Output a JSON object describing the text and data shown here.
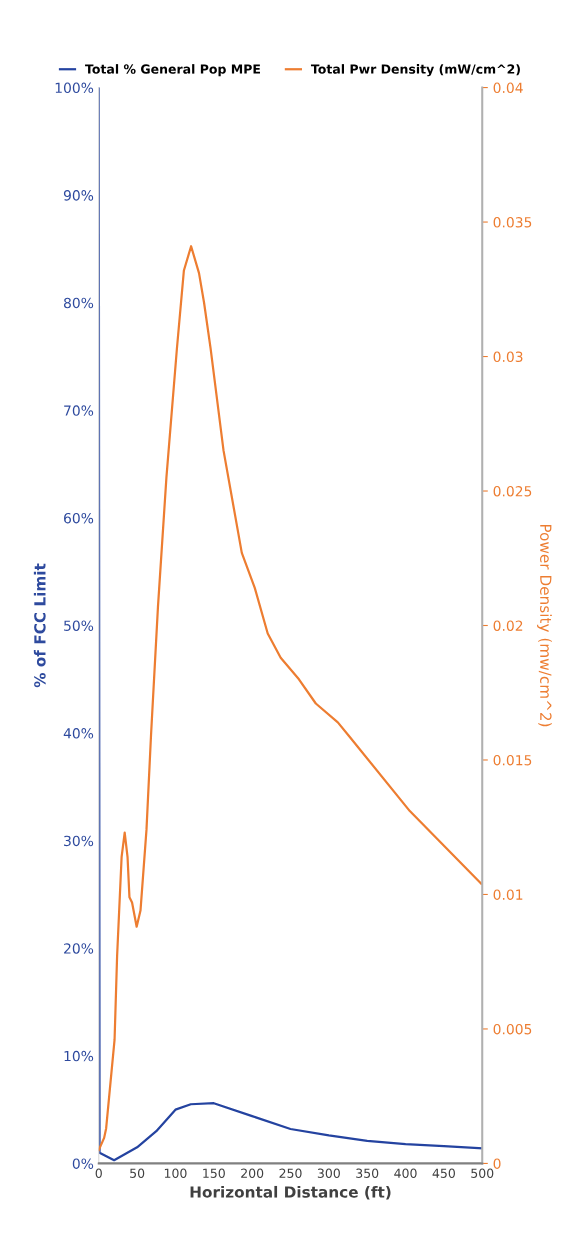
{
  "chart_data": {
    "type": "line",
    "xlabel": "Horizontal Distance (ft)",
    "ylabel": "% of FCC Limit",
    "y2label": "Power Density (mw/cm^2)",
    "xlim": [
      0,
      500
    ],
    "xticks": [
      0,
      50,
      100,
      150,
      200,
      250,
      300,
      350,
      400,
      450,
      500
    ],
    "ylim": [
      0,
      100
    ],
    "yticks": [
      {
        "value": 0,
        "label": "0%"
      },
      {
        "value": 10,
        "label": "10%"
      },
      {
        "value": 20,
        "label": "20%"
      },
      {
        "value": 30,
        "label": "30%"
      },
      {
        "value": 40,
        "label": "40%"
      },
      {
        "value": 50,
        "label": "50%"
      },
      {
        "value": 60,
        "label": "60%"
      },
      {
        "value": 70,
        "label": "70%"
      },
      {
        "value": 80,
        "label": "80%"
      },
      {
        "value": 90,
        "label": "90%"
      },
      {
        "value": 100,
        "label": "100%"
      }
    ],
    "y2lim": [
      0,
      0.04
    ],
    "y2ticks": [
      0,
      0.005,
      0.01,
      0.015,
      0.02,
      0.025,
      0.03,
      0.035,
      0.04
    ],
    "legend": "top",
    "grid": false,
    "marker": "none",
    "line_style": "solid",
    "series": [
      {
        "name": "Total % General Pop MPE",
        "color": "#2443a0",
        "axis": "y",
        "x": [
          0,
          1,
          20,
          50,
          75,
          100,
          120,
          150,
          200,
          250,
          300,
          350,
          400,
          450,
          500
        ],
        "values": [
          100,
          1,
          0.3,
          1.5,
          3,
          5,
          5.5,
          5.6,
          4.4,
          3.2,
          2.6,
          2.1,
          1.8,
          1.6,
          1.4
        ]
      },
      {
        "name": "Total Pwr Density (mW/cm^2)",
        "color": "#ed7d31",
        "axis": "y2",
        "x": [
          0,
          7,
          9.6,
          20.6,
          23.9,
          29.8,
          33.8,
          37.5,
          40,
          43.4,
          49.4,
          54.4,
          62.2,
          68.1,
          77.2,
          88.2,
          101.9,
          111,
          120.4,
          130.7,
          137.3,
          145.8,
          162.7,
          186.5,
          203.4,
          220.3,
          237.2,
          261,
          283,
          311.7,
          326,
          405.6,
          498.7
        ],
        "values": [
          0.0005,
          0.00095,
          0.0013,
          0.0046,
          0.0077,
          0.0114,
          0.0123,
          0.0114,
          0.0099,
          0.0097,
          0.0088,
          0.0094,
          0.0124,
          0.0159,
          0.0207,
          0.0255,
          0.0303,
          0.0332,
          0.0341,
          0.0331,
          0.032,
          0.0303,
          0.0265,
          0.0227,
          0.0214,
          0.0197,
          0.0188,
          0.018,
          0.0171,
          0.0164,
          0.0159,
          0.0131,
          0.0104
        ]
      }
    ]
  }
}
